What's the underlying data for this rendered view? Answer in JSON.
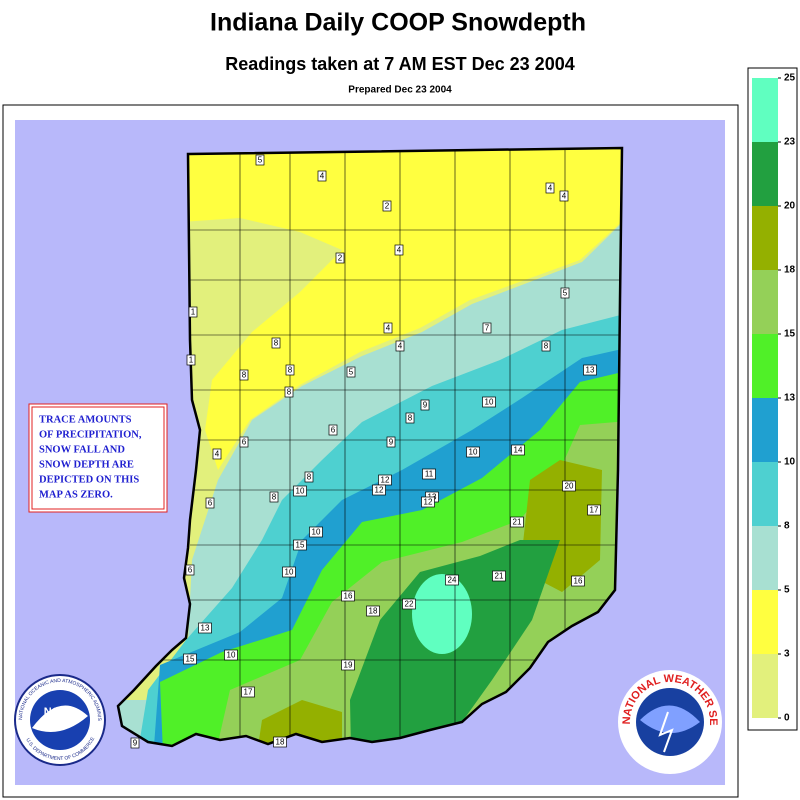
{
  "header": {
    "title": "Indiana Daily COOP Snowdepth",
    "subtitle": "Readings taken at 7 AM EST Dec 23 2004",
    "prepared": "Prepared Dec 23 2004"
  },
  "legend": {
    "ticks": [
      0,
      3,
      5,
      8,
      10,
      13,
      15,
      18,
      20,
      23,
      25
    ],
    "colors": [
      "#e2f07c",
      "#ffff40",
      "#a8e0d2",
      "#4ed0d0",
      "#20a0d0",
      "#50f028",
      "#94d058",
      "#94b000",
      "#22a040",
      "#60ffc0"
    ]
  },
  "note": {
    "lines": [
      "TRACE AMOUNTS",
      "OF PRECIPITATION,",
      "SNOW FALL AND",
      "SNOW DEPTH ARE",
      "DEPICTED ON THIS",
      "MAP AS ZERO."
    ]
  },
  "stations": {
    "values": [
      5,
      4,
      2,
      4,
      4,
      4,
      2,
      5,
      1,
      7,
      4,
      8,
      4,
      8,
      1,
      8,
      8,
      5,
      13,
      8,
      9,
      8,
      10,
      6,
      6,
      4,
      9,
      14,
      10,
      11,
      12,
      8,
      10,
      8,
      12,
      13,
      12,
      6,
      20,
      17,
      21,
      10,
      15,
      6,
      10,
      24,
      21,
      16,
      16,
      18,
      22,
      13,
      10,
      15,
      19,
      17,
      9,
      18
    ]
  },
  "logos": {
    "noaa": "NOAA",
    "noaa_ring": "NATIONAL OCEANIC AND ATMOSPHERIC ADMINISTRATION",
    "noaa_dept": "U.S. DEPARTMENT OF COMMERCE",
    "nws": "NATIONAL WEATHER SERVICE"
  }
}
